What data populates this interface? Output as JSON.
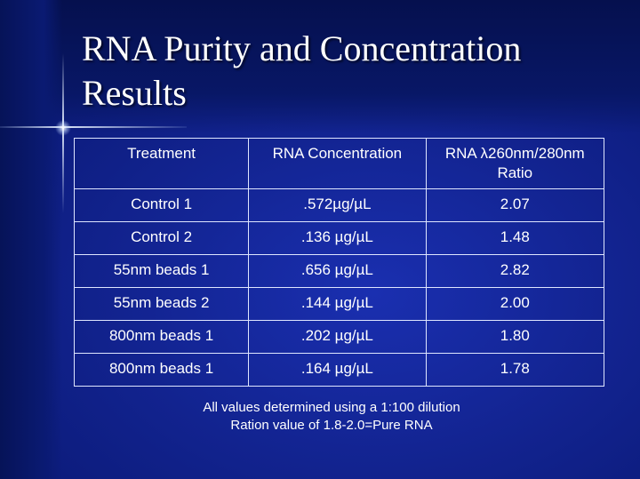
{
  "slide": {
    "title": "RNA Purity and Concentration Results",
    "table": {
      "headers": [
        "Treatment",
        "RNA Concentration",
        "RNA λ260nm/280nm Ratio"
      ],
      "rows": [
        [
          "Control 1",
          ".572µg/µL",
          "2.07"
        ],
        [
          "Control 2",
          ".136 µg/µL",
          "1.48"
        ],
        [
          "55nm beads 1",
          ".656 µg/µL",
          "2.82"
        ],
        [
          "55nm beads 2",
          ".144 µg/µL",
          "2.00"
        ],
        [
          "800nm beads 1",
          ".202 µg/µL",
          "1.80"
        ],
        [
          "800nm beads 1",
          ".164 µg/µL",
          "1.78"
        ]
      ]
    },
    "notes": [
      "All values determined using a 1:100 dilution",
      "Ration value of 1.8-2.0=Pure RNA"
    ]
  }
}
